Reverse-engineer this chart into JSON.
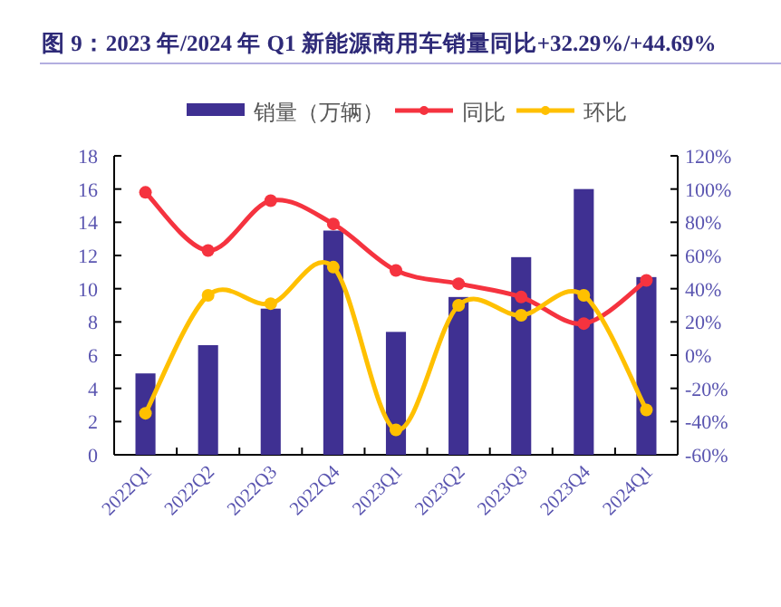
{
  "chart_data": {
    "type": "bar",
    "title": "图 9：2023 年/2024 年 Q1 新能源商用车销量同比+32.29%/+44.69%",
    "categories": [
      "2022Q1",
      "2022Q2",
      "2022Q3",
      "2022Q4",
      "2023Q1",
      "2023Q2",
      "2023Q3",
      "2023Q4",
      "2024Q1"
    ],
    "series": [
      {
        "name": "销量（万辆）",
        "color": "#3f3092",
        "values": [
          4.9,
          6.6,
          8.8,
          13.5,
          7.4,
          9.5,
          11.9,
          16.0,
          10.7
        ]
      },
      {
        "name": "同比",
        "type": "line",
        "axis": "y2",
        "color": "#f5333f",
        "values": [
          98,
          63,
          93,
          79,
          51,
          43,
          35,
          19,
          45
        ]
      },
      {
        "name": "环比",
        "type": "line",
        "axis": "y2",
        "color": "#ffc000",
        "values": [
          -35,
          36,
          31,
          53,
          -45,
          30,
          24,
          36,
          -33
        ]
      }
    ],
    "ylim": [
      0,
      18
    ],
    "yticks": [
      0,
      2,
      4,
      6,
      8,
      10,
      12,
      14,
      16,
      18
    ],
    "y2lim": [
      -60,
      120
    ],
    "y2ticks": [
      {
        "value": -60,
        "label": "-60%"
      },
      {
        "value": -40,
        "label": "-40%"
      },
      {
        "value": -20,
        "label": "-20%"
      },
      {
        "value": 0,
        "label": "0%"
      },
      {
        "value": 20,
        "label": "20%"
      },
      {
        "value": 40,
        "label": "40%"
      },
      {
        "value": 60,
        "label": "60%"
      },
      {
        "value": 80,
        "label": "80%"
      },
      {
        "value": 100,
        "label": "100%"
      },
      {
        "value": 120,
        "label": "120%"
      }
    ],
    "marker": "circle",
    "legend": "top",
    "grid": false
  }
}
